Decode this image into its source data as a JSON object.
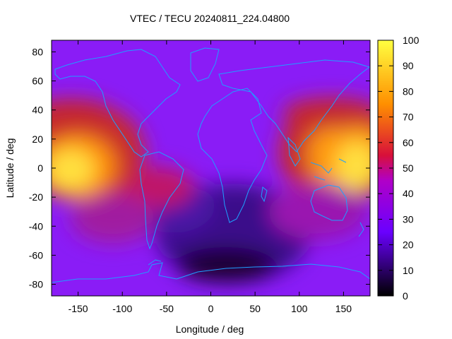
{
  "chart_data": {
    "type": "heatmap",
    "title": "VTEC / TECU 20240811_224.04800",
    "xlabel": "Longitude / deg",
    "ylabel": "Latitude / deg",
    "xlim": [
      -180,
      180
    ],
    "ylim": [
      -88,
      88
    ],
    "x_ticks": [
      -150,
      -100,
      -50,
      0,
      50,
      100,
      150
    ],
    "y_ticks": [
      -80,
      -60,
      -40,
      -20,
      0,
      20,
      40,
      60,
      80
    ],
    "colorbar": {
      "range": [
        0,
        100
      ],
      "ticks": [
        0,
        10,
        20,
        30,
        40,
        50,
        60,
        70,
        80,
        90,
        100
      ],
      "colormap": [
        "#000000",
        "#7f00ff",
        "#e0004f",
        "#ff8f00",
        "#ffff40"
      ]
    },
    "grid": false,
    "coastline_color": "#1ea0ff",
    "features": [
      {
        "lon": -150,
        "lat": 5,
        "vtec": 95
      },
      {
        "lon": -175,
        "lat": -5,
        "vtec": 97
      },
      {
        "lon": 175,
        "lat": 5,
        "vtec": 95
      },
      {
        "lon": 140,
        "lat": 20,
        "vtec": 85
      },
      {
        "lon": 120,
        "lat": 35,
        "vtec": 60
      },
      {
        "lon": -150,
        "lat": 35,
        "vtec": 60
      },
      {
        "lon": -90,
        "lat": -20,
        "vtec": 55
      },
      {
        "lon": -45,
        "lat": -20,
        "vtec": 50
      },
      {
        "lon": 20,
        "lat": -55,
        "vtec": 8
      },
      {
        "lon": -30,
        "lat": -45,
        "vtec": 12
      },
      {
        "lon": 50,
        "lat": -10,
        "vtec": 15
      },
      {
        "lon": 0,
        "lat": 80,
        "vtec": 30
      }
    ]
  }
}
